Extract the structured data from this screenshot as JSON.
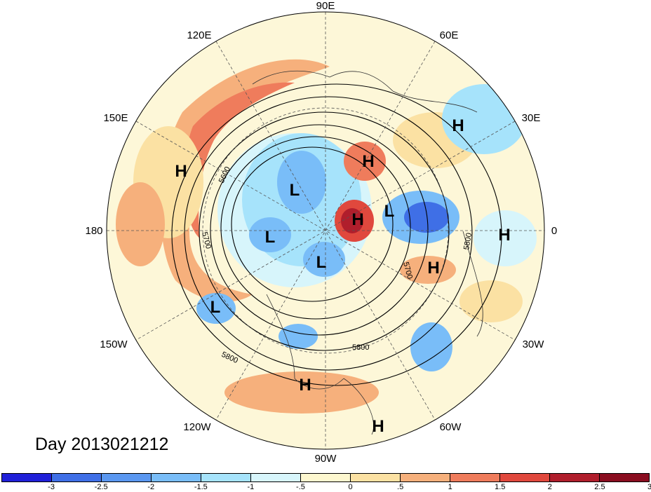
{
  "map": {
    "projection": "north polar stereographic",
    "lon_labels": [
      "90E",
      "60E",
      "30E",
      "0",
      "30W",
      "60W",
      "90W",
      "120W",
      "150W",
      "180",
      "150E",
      "120E"
    ],
    "contour_labels": [
      "5600",
      "5700",
      "5700",
      "5700",
      "5800",
      "5800",
      "5800"
    ],
    "centers": [
      {
        "type": "H",
        "name": "h-north-siberia"
      },
      {
        "type": "H",
        "name": "h-arctic-atlantic"
      },
      {
        "type": "H",
        "name": "h-kamchatka"
      },
      {
        "type": "H",
        "name": "h-europe-north"
      },
      {
        "type": "H",
        "name": "h-africa"
      },
      {
        "type": "H",
        "name": "h-atlantic"
      },
      {
        "type": "H",
        "name": "h-gulf-mexico"
      },
      {
        "type": "H",
        "name": "h-south-america"
      },
      {
        "type": "L",
        "name": "l-pole"
      },
      {
        "type": "L",
        "name": "l-alaska"
      },
      {
        "type": "L",
        "name": "l-hudson-bay"
      },
      {
        "type": "L",
        "name": "l-scandinavia"
      },
      {
        "type": "L",
        "name": "l-pacific"
      }
    ]
  },
  "day_label": "Day 2013021212",
  "colorbar": {
    "colors": [
      "#2020d8",
      "#3f6fe6",
      "#5a97f0",
      "#79bdf8",
      "#a6e3fb",
      "#d7f5fb",
      "#fdf7cf",
      "#fbe1a3",
      "#f6b07c",
      "#ef7c5c",
      "#e0483d",
      "#b01e2c",
      "#8a0d20"
    ],
    "tick_labels": [
      "-3",
      "-2.5",
      "-2",
      "-1.5",
      "-1",
      "-.5",
      "0",
      ".5",
      "1",
      "1.5",
      "2",
      "2.5",
      "3"
    ]
  }
}
